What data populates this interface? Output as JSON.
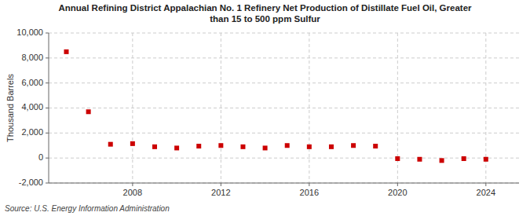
{
  "chart_data": {
    "type": "scatter",
    "title": "Annual Refining District Appalachian No. 1 Refinery Net Production of Distillate Fuel Oil, Greater\nthan 15 to 500 ppm Sulfur",
    "ylabel": "Thousand Barrels",
    "source": "Source: U.S. Energy Information Administration",
    "x": [
      2005,
      2006,
      2007,
      2008,
      2009,
      2010,
      2011,
      2012,
      2013,
      2014,
      2015,
      2016,
      2017,
      2018,
      2019,
      2020,
      2021,
      2022,
      2023,
      2024
    ],
    "values": [
      8500,
      3700,
      1100,
      1150,
      900,
      800,
      950,
      1000,
      900,
      800,
      1000,
      900,
      900,
      1000,
      950,
      -50,
      -100,
      -200,
      -50,
      -100
    ],
    "color": "#cc0000",
    "marker": "square",
    "grid": true,
    "xlim": [
      2004.2,
      2025.5
    ],
    "xticks": [
      2008,
      2012,
      2016,
      2020,
      2024
    ],
    "ylim": [
      -2000,
      10000
    ],
    "yticks": [
      {
        "value": -2000,
        "label": "-2,000"
      },
      0,
      {
        "value": 2000,
        "label": "2,000"
      },
      {
        "value": 4000,
        "label": "4,000"
      },
      {
        "value": 6000,
        "label": "6,000"
      },
      {
        "value": 8000,
        "label": "8,000"
      },
      {
        "value": 10000,
        "label": "10,000"
      }
    ]
  }
}
